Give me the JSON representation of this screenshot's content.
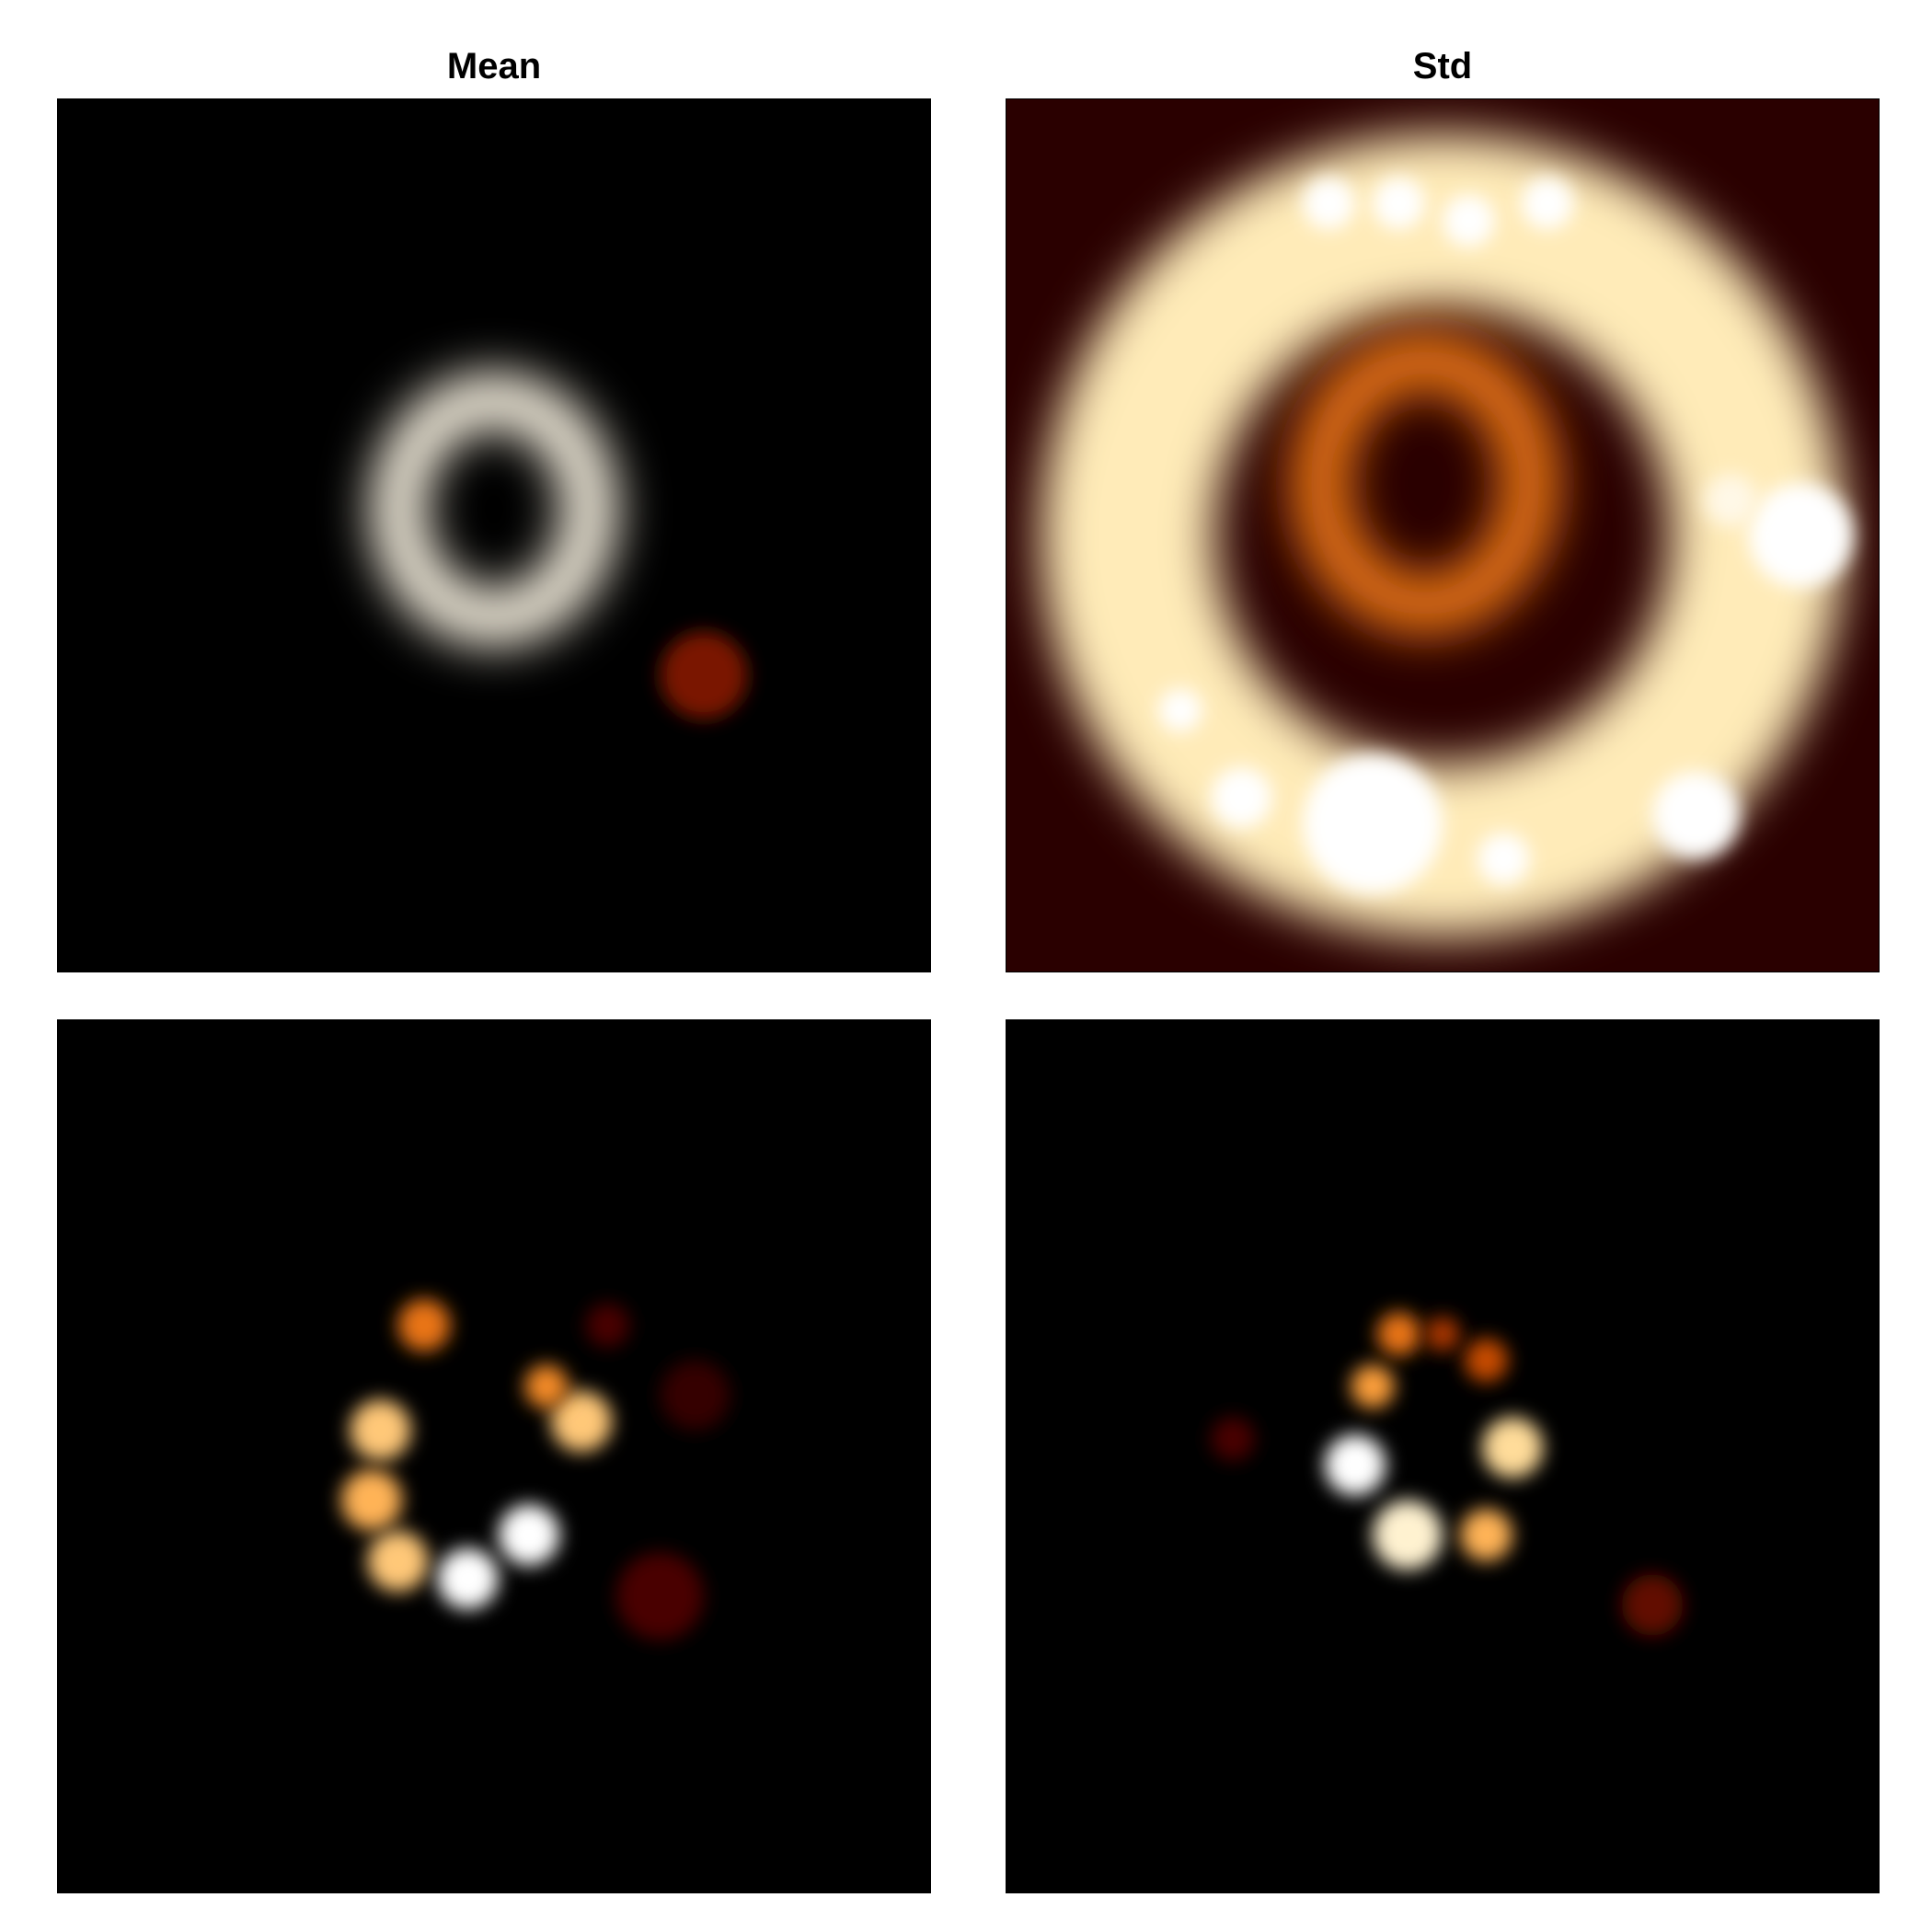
{
  "titles": {
    "mean": "Mean",
    "std": "Std"
  },
  "colormap": {
    "name": "afmhot",
    "stops": [
      "#000000",
      "#3a0000",
      "#8a1e00",
      "#e06000",
      "#ffa640",
      "#ffe9b0",
      "#ffffff"
    ]
  },
  "chart_data": [
    {
      "type": "heatmap",
      "panel": "top-left",
      "title": "Mean",
      "background_level": 0.0,
      "features": [
        {
          "kind": "ring",
          "cx": 0.5,
          "cy": 0.47,
          "rx": 0.11,
          "ry": 0.125,
          "level": 0.95
        },
        {
          "kind": "blob",
          "cx": 0.74,
          "cy": 0.66,
          "r": 0.05,
          "level": 0.3
        }
      ]
    },
    {
      "type": "heatmap",
      "panel": "top-right",
      "title": "Std",
      "background_level": 0.12,
      "features": [
        {
          "kind": "ring",
          "cx": 0.5,
          "cy": 0.5,
          "rx": 0.36,
          "ry": 0.36,
          "level": 0.85
        },
        {
          "kind": "ring",
          "cx": 0.48,
          "cy": 0.44,
          "rx": 0.12,
          "ry": 0.14,
          "level": 0.55
        },
        {
          "kind": "blob",
          "cx": 0.42,
          "cy": 0.83,
          "r": 0.08,
          "level": 1.0
        },
        {
          "kind": "blob",
          "cx": 0.91,
          "cy": 0.5,
          "r": 0.06,
          "level": 1.0
        },
        {
          "kind": "blob",
          "cx": 0.37,
          "cy": 0.12,
          "r": 0.03,
          "level": 1.0
        },
        {
          "kind": "blob",
          "cx": 0.45,
          "cy": 0.12,
          "r": 0.03,
          "level": 1.0
        },
        {
          "kind": "blob",
          "cx": 0.53,
          "cy": 0.14,
          "r": 0.03,
          "level": 1.0
        },
        {
          "kind": "blob",
          "cx": 0.62,
          "cy": 0.12,
          "r": 0.03,
          "level": 1.0
        },
        {
          "kind": "blob",
          "cx": 0.27,
          "cy": 0.8,
          "r": 0.035,
          "level": 1.0
        },
        {
          "kind": "blob",
          "cx": 0.57,
          "cy": 0.87,
          "r": 0.03,
          "level": 1.0
        },
        {
          "kind": "blob",
          "cx": 0.2,
          "cy": 0.7,
          "r": 0.025,
          "level": 1.0
        },
        {
          "kind": "blob",
          "cx": 0.79,
          "cy": 0.82,
          "r": 0.05,
          "level": 1.0
        },
        {
          "kind": "blob",
          "cx": 0.83,
          "cy": 0.46,
          "r": 0.03,
          "level": 0.95
        }
      ]
    },
    {
      "type": "heatmap",
      "panel": "bottom-left",
      "title": "",
      "background_level": 0.0,
      "features": [
        {
          "kind": "blob",
          "cx": 0.42,
          "cy": 0.35,
          "r": 0.03,
          "level": 0.55
        },
        {
          "kind": "blob",
          "cx": 0.37,
          "cy": 0.47,
          "r": 0.035,
          "level": 0.75
        },
        {
          "kind": "blob",
          "cx": 0.36,
          "cy": 0.55,
          "r": 0.035,
          "level": 0.7
        },
        {
          "kind": "blob",
          "cx": 0.39,
          "cy": 0.62,
          "r": 0.035,
          "level": 0.75
        },
        {
          "kind": "blob",
          "cx": 0.47,
          "cy": 0.64,
          "r": 0.035,
          "level": 1.0
        },
        {
          "kind": "blob",
          "cx": 0.54,
          "cy": 0.59,
          "r": 0.035,
          "level": 1.0
        },
        {
          "kind": "blob",
          "cx": 0.6,
          "cy": 0.46,
          "r": 0.035,
          "level": 0.75
        },
        {
          "kind": "blob",
          "cx": 0.56,
          "cy": 0.42,
          "r": 0.025,
          "level": 0.6
        },
        {
          "kind": "blob",
          "cx": 0.63,
          "cy": 0.35,
          "r": 0.025,
          "level": 0.2
        },
        {
          "kind": "blob",
          "cx": 0.73,
          "cy": 0.43,
          "r": 0.04,
          "level": 0.15
        },
        {
          "kind": "blob",
          "cx": 0.69,
          "cy": 0.66,
          "r": 0.05,
          "level": 0.2
        }
      ]
    },
    {
      "type": "heatmap",
      "panel": "bottom-right",
      "title": "",
      "background_level": 0.0,
      "features": [
        {
          "kind": "blob",
          "cx": 0.4,
          "cy": 0.51,
          "r": 0.035,
          "level": 1.0
        },
        {
          "kind": "blob",
          "cx": 0.42,
          "cy": 0.42,
          "r": 0.025,
          "level": 0.65
        },
        {
          "kind": "blob",
          "cx": 0.45,
          "cy": 0.36,
          "r": 0.025,
          "level": 0.55
        },
        {
          "kind": "blob",
          "cx": 0.46,
          "cy": 0.59,
          "r": 0.04,
          "level": 0.9
        },
        {
          "kind": "blob",
          "cx": 0.55,
          "cy": 0.59,
          "r": 0.03,
          "level": 0.7
        },
        {
          "kind": "blob",
          "cx": 0.58,
          "cy": 0.49,
          "r": 0.035,
          "level": 0.8
        },
        {
          "kind": "blob",
          "cx": 0.55,
          "cy": 0.39,
          "r": 0.025,
          "level": 0.45
        },
        {
          "kind": "blob",
          "cx": 0.5,
          "cy": 0.36,
          "r": 0.02,
          "level": 0.4
        },
        {
          "kind": "blob",
          "cx": 0.26,
          "cy": 0.48,
          "r": 0.025,
          "level": 0.2
        },
        {
          "kind": "blob",
          "cx": 0.74,
          "cy": 0.67,
          "r": 0.035,
          "level": 0.25
        }
      ]
    }
  ]
}
